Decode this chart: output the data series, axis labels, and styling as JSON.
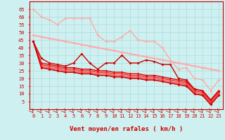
{
  "xlabel": "Vent moyen/en rafales ( km/h )",
  "xlim": [
    -0.5,
    23.5
  ],
  "ylim": [
    0,
    70
  ],
  "yticks": [
    5,
    10,
    15,
    20,
    25,
    30,
    35,
    40,
    45,
    50,
    55,
    60,
    65
  ],
  "xticks": [
    0,
    1,
    2,
    3,
    4,
    5,
    6,
    7,
    8,
    9,
    10,
    11,
    12,
    13,
    14,
    15,
    16,
    17,
    18,
    19,
    20,
    21,
    22,
    23
  ],
  "background_color": "#cff0f0",
  "grid_color": "#aadddd",
  "series": [
    {
      "x": [
        0,
        1,
        2,
        3,
        4,
        5,
        6,
        7,
        8,
        9,
        10,
        11,
        12,
        13,
        14,
        15,
        16,
        17,
        18,
        19,
        20,
        21,
        22,
        23
      ],
      "y": [
        65,
        60,
        58,
        55,
        59,
        59,
        59,
        59,
        48,
        44,
        44,
        47,
        51,
        45,
        44,
        44,
        40,
        32,
        26,
        27,
        20,
        19,
        12,
        19
      ],
      "color": "#ffaaaa",
      "lw": 1.0,
      "marker": "D",
      "ms": 2.0
    },
    {
      "x": [
        0,
        1,
        2,
        3,
        4,
        5,
        6,
        7,
        8,
        9,
        10,
        11,
        12,
        13,
        14,
        15,
        16,
        17,
        18,
        19,
        20,
        21,
        22,
        23
      ],
      "y": [
        48,
        47,
        46,
        45,
        44,
        43,
        42,
        41,
        40,
        39,
        38,
        37,
        36,
        35,
        34,
        33,
        32,
        31,
        30,
        29,
        28,
        27,
        26,
        25
      ],
      "color": "#ffaaaa",
      "lw": 1.5,
      "marker": "D",
      "ms": 2.0
    },
    {
      "x": [
        0,
        1,
        2,
        3,
        4,
        5,
        6,
        7,
        8,
        9,
        10,
        11,
        12,
        13,
        14,
        15,
        16,
        17,
        18,
        19,
        20,
        21,
        22,
        23
      ],
      "y": [
        44,
        33,
        30,
        29,
        28,
        30,
        36,
        30,
        26,
        30,
        30,
        35,
        30,
        30,
        32,
        31,
        29,
        29,
        20,
        19,
        13,
        12,
        6,
        12
      ],
      "color": "#cc0000",
      "lw": 1.0,
      "marker": "D",
      "ms": 2.0
    },
    {
      "x": [
        0,
        1,
        2,
        3,
        4,
        5,
        6,
        7,
        8,
        9,
        10,
        11,
        12,
        13,
        14,
        15,
        16,
        17,
        18,
        19,
        20,
        21,
        22,
        23
      ],
      "y": [
        44,
        30,
        29,
        28,
        27,
        27,
        26,
        26,
        25,
        25,
        24,
        24,
        23,
        23,
        22,
        22,
        21,
        20,
        19,
        18,
        13,
        12,
        6,
        12
      ],
      "color": "#dd0000",
      "lw": 1.0,
      "marker": "D",
      "ms": 1.8
    },
    {
      "x": [
        0,
        1,
        2,
        3,
        4,
        5,
        6,
        7,
        8,
        9,
        10,
        11,
        12,
        13,
        14,
        15,
        16,
        17,
        18,
        19,
        20,
        21,
        22,
        23
      ],
      "y": [
        44,
        29,
        28,
        27,
        26,
        26,
        25,
        25,
        24,
        24,
        23,
        23,
        22,
        22,
        21,
        21,
        20,
        19,
        18,
        17,
        12,
        11,
        5,
        11
      ],
      "color": "#ee2222",
      "lw": 1.0,
      "marker": "D",
      "ms": 1.8
    },
    {
      "x": [
        0,
        1,
        2,
        3,
        4,
        5,
        6,
        7,
        8,
        9,
        10,
        11,
        12,
        13,
        14,
        15,
        16,
        17,
        18,
        19,
        20,
        21,
        22,
        23
      ],
      "y": [
        44,
        28,
        27,
        26,
        25,
        25,
        24,
        24,
        23,
        23,
        22,
        22,
        21,
        21,
        20,
        20,
        19,
        18,
        17,
        16,
        11,
        10,
        4,
        10
      ],
      "color": "#ff4444",
      "lw": 1.0,
      "marker": "D",
      "ms": 1.8
    },
    {
      "x": [
        0,
        1,
        2,
        3,
        4,
        5,
        6,
        7,
        8,
        9,
        10,
        11,
        12,
        13,
        14,
        15,
        16,
        17,
        18,
        19,
        20,
        21,
        22,
        23
      ],
      "y": [
        44,
        27,
        26,
        25,
        24,
        24,
        23,
        23,
        22,
        22,
        21,
        21,
        20,
        20,
        19,
        19,
        18,
        17,
        16,
        15,
        10,
        9,
        3,
        9
      ],
      "color": "#cc0000",
      "lw": 1.2,
      "marker": "D",
      "ms": 2.0
    }
  ],
  "arrow_color": "#cc0000",
  "tick_label_color": "#cc0000",
  "axis_label_color": "#cc0000",
  "tick_label_fontsize": 5.0,
  "axis_label_fontsize": 6.5
}
